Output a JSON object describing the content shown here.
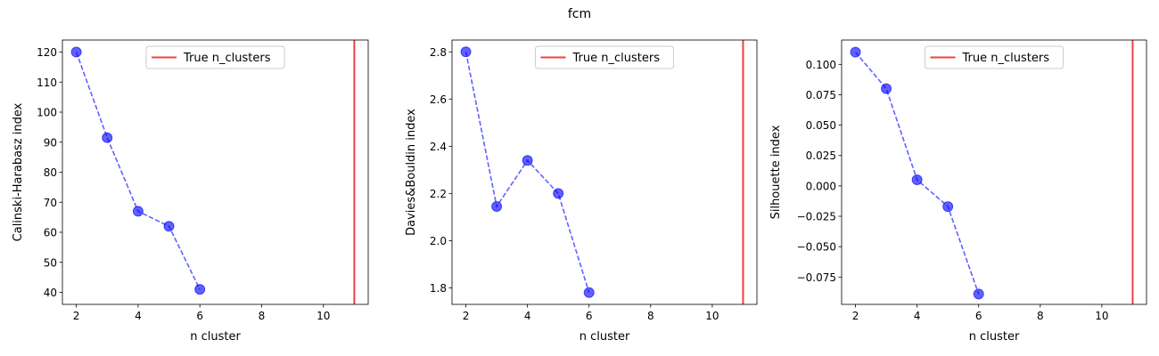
{
  "suptitle": "fcm",
  "chart_data": [
    {
      "type": "line",
      "xlabel": "n cluster",
      "ylabel": "Calinski-Harabasz index",
      "xlim": [
        1.55,
        11.45
      ],
      "ylim": [
        36,
        124
      ],
      "xticks": [
        2,
        4,
        6,
        8,
        10
      ],
      "xtick_labels": [
        "2",
        "4",
        "6",
        "8",
        "10"
      ],
      "yticks": [
        40,
        50,
        60,
        70,
        80,
        90,
        100,
        110,
        120
      ],
      "ytick_labels": [
        "40",
        "50",
        "60",
        "70",
        "80",
        "90",
        "100",
        "110",
        "120"
      ],
      "x": [
        2,
        3,
        4,
        5,
        6
      ],
      "y": [
        120.0,
        91.5,
        67.0,
        62.0,
        41.0
      ],
      "vline": {
        "x": 11,
        "label": "True n_clusters"
      },
      "legend": {
        "placement": "upper center",
        "entries": [
          "True n_clusters"
        ]
      },
      "grid": false
    },
    {
      "type": "line",
      "xlabel": "n cluster",
      "ylabel": "Davies&Bouldin index",
      "xlim": [
        1.55,
        11.45
      ],
      "ylim": [
        1.73,
        2.85
      ],
      "xticks": [
        2,
        4,
        6,
        8,
        10
      ],
      "xtick_labels": [
        "2",
        "4",
        "6",
        "8",
        "10"
      ],
      "yticks": [
        1.8,
        2.0,
        2.2,
        2.4,
        2.6,
        2.8
      ],
      "ytick_labels": [
        "1.8",
        "2.0",
        "2.2",
        "2.4",
        "2.6",
        "2.8"
      ],
      "x": [
        2,
        3,
        4,
        5,
        6
      ],
      "y": [
        2.8,
        2.145,
        2.34,
        2.2,
        1.78
      ],
      "vline": {
        "x": 11,
        "label": "True n_clusters"
      },
      "legend": {
        "placement": "upper center",
        "entries": [
          "True n_clusters"
        ]
      },
      "grid": false
    },
    {
      "type": "line",
      "xlabel": "n cluster",
      "ylabel": "Silhouette index",
      "xlim": [
        1.55,
        11.45
      ],
      "ylim": [
        -0.0975,
        0.12
      ],
      "xticks": [
        2,
        4,
        6,
        8,
        10
      ],
      "xtick_labels": [
        "2",
        "4",
        "6",
        "8",
        "10"
      ],
      "yticks": [
        -0.075,
        -0.05,
        -0.025,
        0.0,
        0.025,
        0.05,
        0.075,
        0.1
      ],
      "ytick_labels": [
        "−0.075",
        "−0.050",
        "−0.025",
        "0.000",
        "0.025",
        "0.050",
        "0.075",
        "0.100"
      ],
      "x": [
        2,
        3,
        4,
        5,
        6
      ],
      "y": [
        0.11,
        0.08,
        0.005,
        -0.017,
        -0.089
      ],
      "vline": {
        "x": 11,
        "label": "True n_clusters"
      },
      "legend": {
        "placement": "upper center",
        "entries": [
          "True n_clusters"
        ]
      },
      "grid": false
    }
  ],
  "colors": {
    "series": "#0000ff",
    "true_line": "#f04040",
    "axes": "#000000",
    "legend_border": "#cccccc"
  }
}
